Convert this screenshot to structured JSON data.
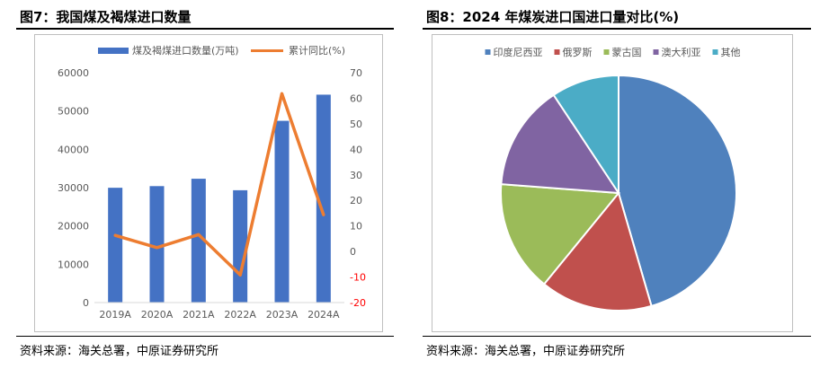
{
  "left": {
    "figure_title": "图7：我国煤及褐煤进口数量",
    "source": "资料来源：海关总署，中原证券研究所"
  },
  "right": {
    "figure_title": "图8：2024 年煤炭进口国进口量对比(%)",
    "source": "资料来源：海关总署，中原证券研究所"
  },
  "colors": {
    "bar": "#4472C4",
    "line": "#ED7D31",
    "negative_tick": "#FF0000",
    "pie": [
      "#4F81BD",
      "#C0504D",
      "#9BBB59",
      "#8064A2",
      "#4BACC6"
    ]
  },
  "chart_data": [
    {
      "type": "bar",
      "combo": "bar+line",
      "title": "",
      "categories": [
        "2019A",
        "2020A",
        "2021A",
        "2022A",
        "2023A",
        "2024A"
      ],
      "series": [
        {
          "name": "煤及褐煤进口数量(万吨)",
          "type": "bar",
          "axis": "left",
          "values": [
            29967,
            30399,
            32322,
            29320,
            47442,
            54270
          ]
        },
        {
          "name": "累计同比(%)",
          "type": "line",
          "axis": "right",
          "values": [
            6.3,
            1.5,
            6.6,
            -9.2,
            61.8,
            14.4
          ]
        }
      ],
      "ylim": [
        0,
        60000
      ],
      "yticks": [
        0,
        10000,
        20000,
        30000,
        40000,
        50000,
        60000
      ],
      "y2lim": [
        -20,
        70
      ],
      "y2ticks": [
        -20,
        -10,
        0,
        10,
        20,
        30,
        40,
        50,
        60,
        70
      ],
      "legend_position": "top",
      "grid": false
    },
    {
      "type": "pie",
      "title": "",
      "labels": [
        "印度尼西亚",
        "俄罗斯",
        "蒙古国",
        "澳大利亚",
        "其他"
      ],
      "values": [
        45.5,
        15.4,
        15.3,
        14.5,
        9.3
      ],
      "legend_position": "top"
    }
  ]
}
